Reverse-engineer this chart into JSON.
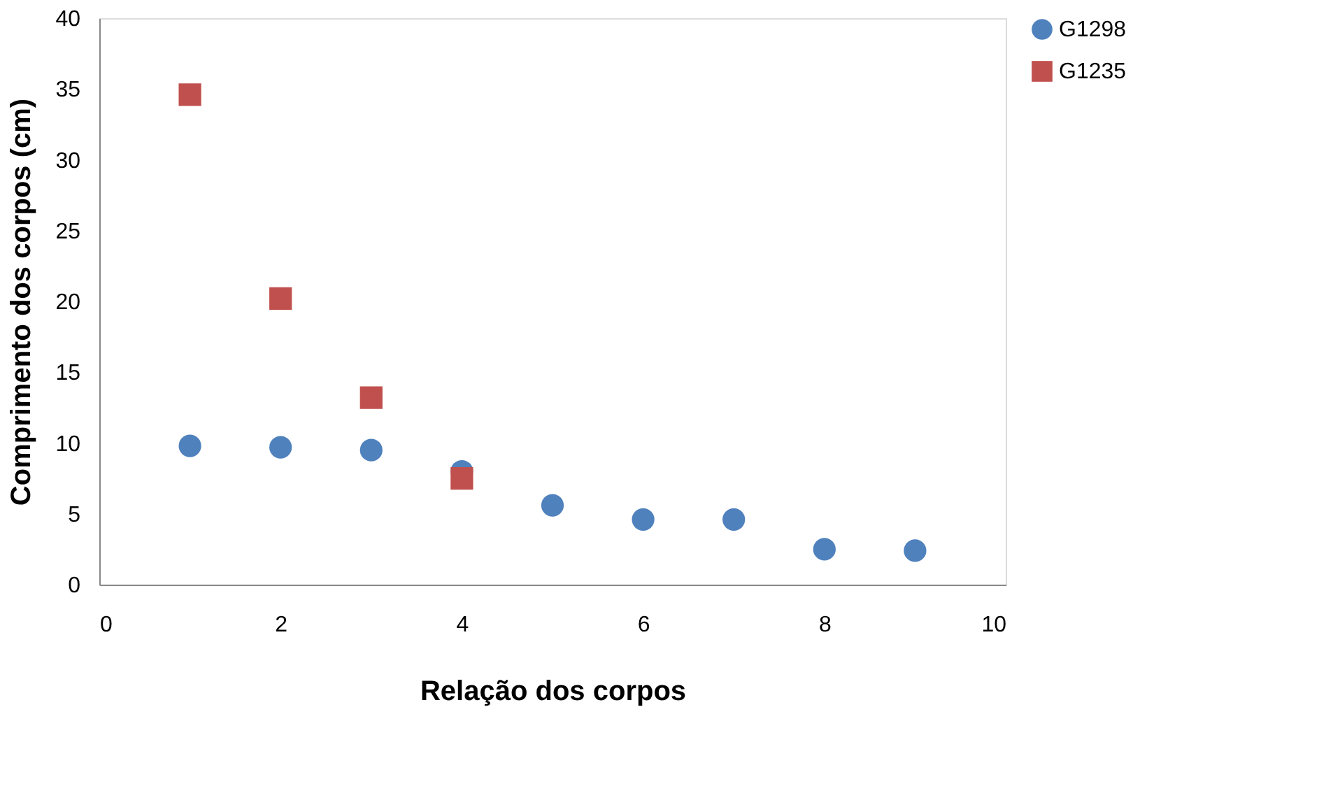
{
  "chart_data": {
    "type": "scatter",
    "xlabel": "Relação dos corpos",
    "ylabel": "Comprimento dos corpos (cm)",
    "xlim": [
      0,
      10
    ],
    "xticks": [
      0,
      2,
      4,
      6,
      8,
      10
    ],
    "ylim": [
      0,
      40
    ],
    "yticks": [
      0,
      5,
      10,
      15,
      20,
      25,
      30,
      35,
      40
    ],
    "grid": false,
    "legend": "right",
    "series": [
      {
        "name": "G1298",
        "color": "#4f81bd",
        "marker": "circle",
        "x": [
          1,
          2,
          3,
          4,
          5,
          6,
          7,
          8,
          9
        ],
        "values": [
          9.8,
          9.7,
          9.5,
          8.0,
          5.6,
          4.6,
          4.6,
          2.5,
          2.4
        ]
      },
      {
        "name": "G1235",
        "color": "#c0504d",
        "marker": "square",
        "x": [
          1,
          2,
          3,
          4
        ],
        "values": [
          34.6,
          20.2,
          13.2,
          7.5
        ]
      }
    ]
  }
}
